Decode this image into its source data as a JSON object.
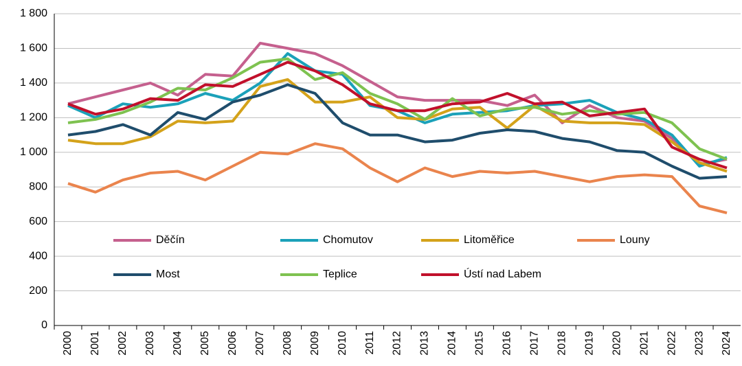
{
  "chart_data": {
    "type": "line",
    "categories": [
      "2000",
      "2001",
      "2002",
      "2003",
      "2004",
      "2005",
      "2006",
      "2007",
      "2008",
      "2009",
      "2010",
      "2011",
      "2012",
      "2013",
      "2014",
      "2015",
      "2016",
      "2017",
      "2018",
      "2019",
      "2020",
      "2021",
      "2022",
      "2023",
      "2024"
    ],
    "series": [
      {
        "name": "Děčín",
        "color": "#c5608e",
        "values": [
          1280,
          1320,
          1360,
          1400,
          1330,
          1450,
          1440,
          1630,
          1600,
          1570,
          1500,
          1410,
          1320,
          1300,
          1300,
          1300,
          1270,
          1330,
          1170,
          1270,
          1200,
          1180,
          1080,
          930,
          960
        ]
      },
      {
        "name": "Chomutov",
        "color": "#1ba1b9",
        "values": [
          1270,
          1200,
          1280,
          1260,
          1280,
          1340,
          1300,
          1400,
          1570,
          1470,
          1450,
          1270,
          1240,
          1170,
          1220,
          1230,
          1240,
          1270,
          1280,
          1300,
          1230,
          1190,
          1100,
          920,
          970
        ]
      },
      {
        "name": "Litoměřice",
        "color": "#d4a21a",
        "values": [
          1070,
          1050,
          1050,
          1090,
          1180,
          1170,
          1180,
          1380,
          1420,
          1290,
          1290,
          1320,
          1200,
          1190,
          1250,
          1260,
          1140,
          1270,
          1180,
          1170,
          1170,
          1160,
          1060,
          940,
          890
        ]
      },
      {
        "name": "Louny",
        "color": "#ea844d",
        "values": [
          820,
          770,
          840,
          880,
          890,
          840,
          920,
          1000,
          990,
          1050,
          1020,
          910,
          830,
          910,
          860,
          890,
          880,
          890,
          860,
          830,
          860,
          870,
          860,
          690,
          650
        ]
      },
      {
        "name": "Most",
        "color": "#1f4d6c",
        "values": [
          1100,
          1120,
          1160,
          1100,
          1230,
          1190,
          1290,
          1330,
          1390,
          1340,
          1170,
          1100,
          1100,
          1060,
          1070,
          1110,
          1130,
          1120,
          1080,
          1060,
          1010,
          1000,
          920,
          850,
          860
        ]
      },
      {
        "name": "Teplice",
        "color": "#7ec250",
        "values": [
          1170,
          1190,
          1230,
          1290,
          1370,
          1360,
          1430,
          1520,
          1540,
          1420,
          1460,
          1340,
          1280,
          1190,
          1310,
          1210,
          1250,
          1260,
          1220,
          1240,
          1220,
          1230,
          1170,
          1020,
          960
        ]
      },
      {
        "name": "Ústí nad Labem",
        "color": "#c1102b",
        "values": [
          1280,
          1220,
          1250,
          1310,
          1300,
          1390,
          1380,
          1450,
          1520,
          1470,
          1390,
          1280,
          1240,
          1240,
          1280,
          1290,
          1340,
          1280,
          1290,
          1210,
          1230,
          1250,
          1030,
          960,
          910
        ]
      }
    ],
    "ylim": [
      0,
      1800
    ],
    "yticks": [
      0,
      200,
      400,
      600,
      800,
      {
        "value": 1000,
        "label": "1 000"
      },
      {
        "value": 1200,
        "label": "1 200"
      },
      {
        "value": 1400,
        "label": "1 400"
      },
      {
        "value": 1600,
        "label": "1 600"
      },
      {
        "value": 1800,
        "label": "1 800"
      }
    ],
    "grid": true
  }
}
